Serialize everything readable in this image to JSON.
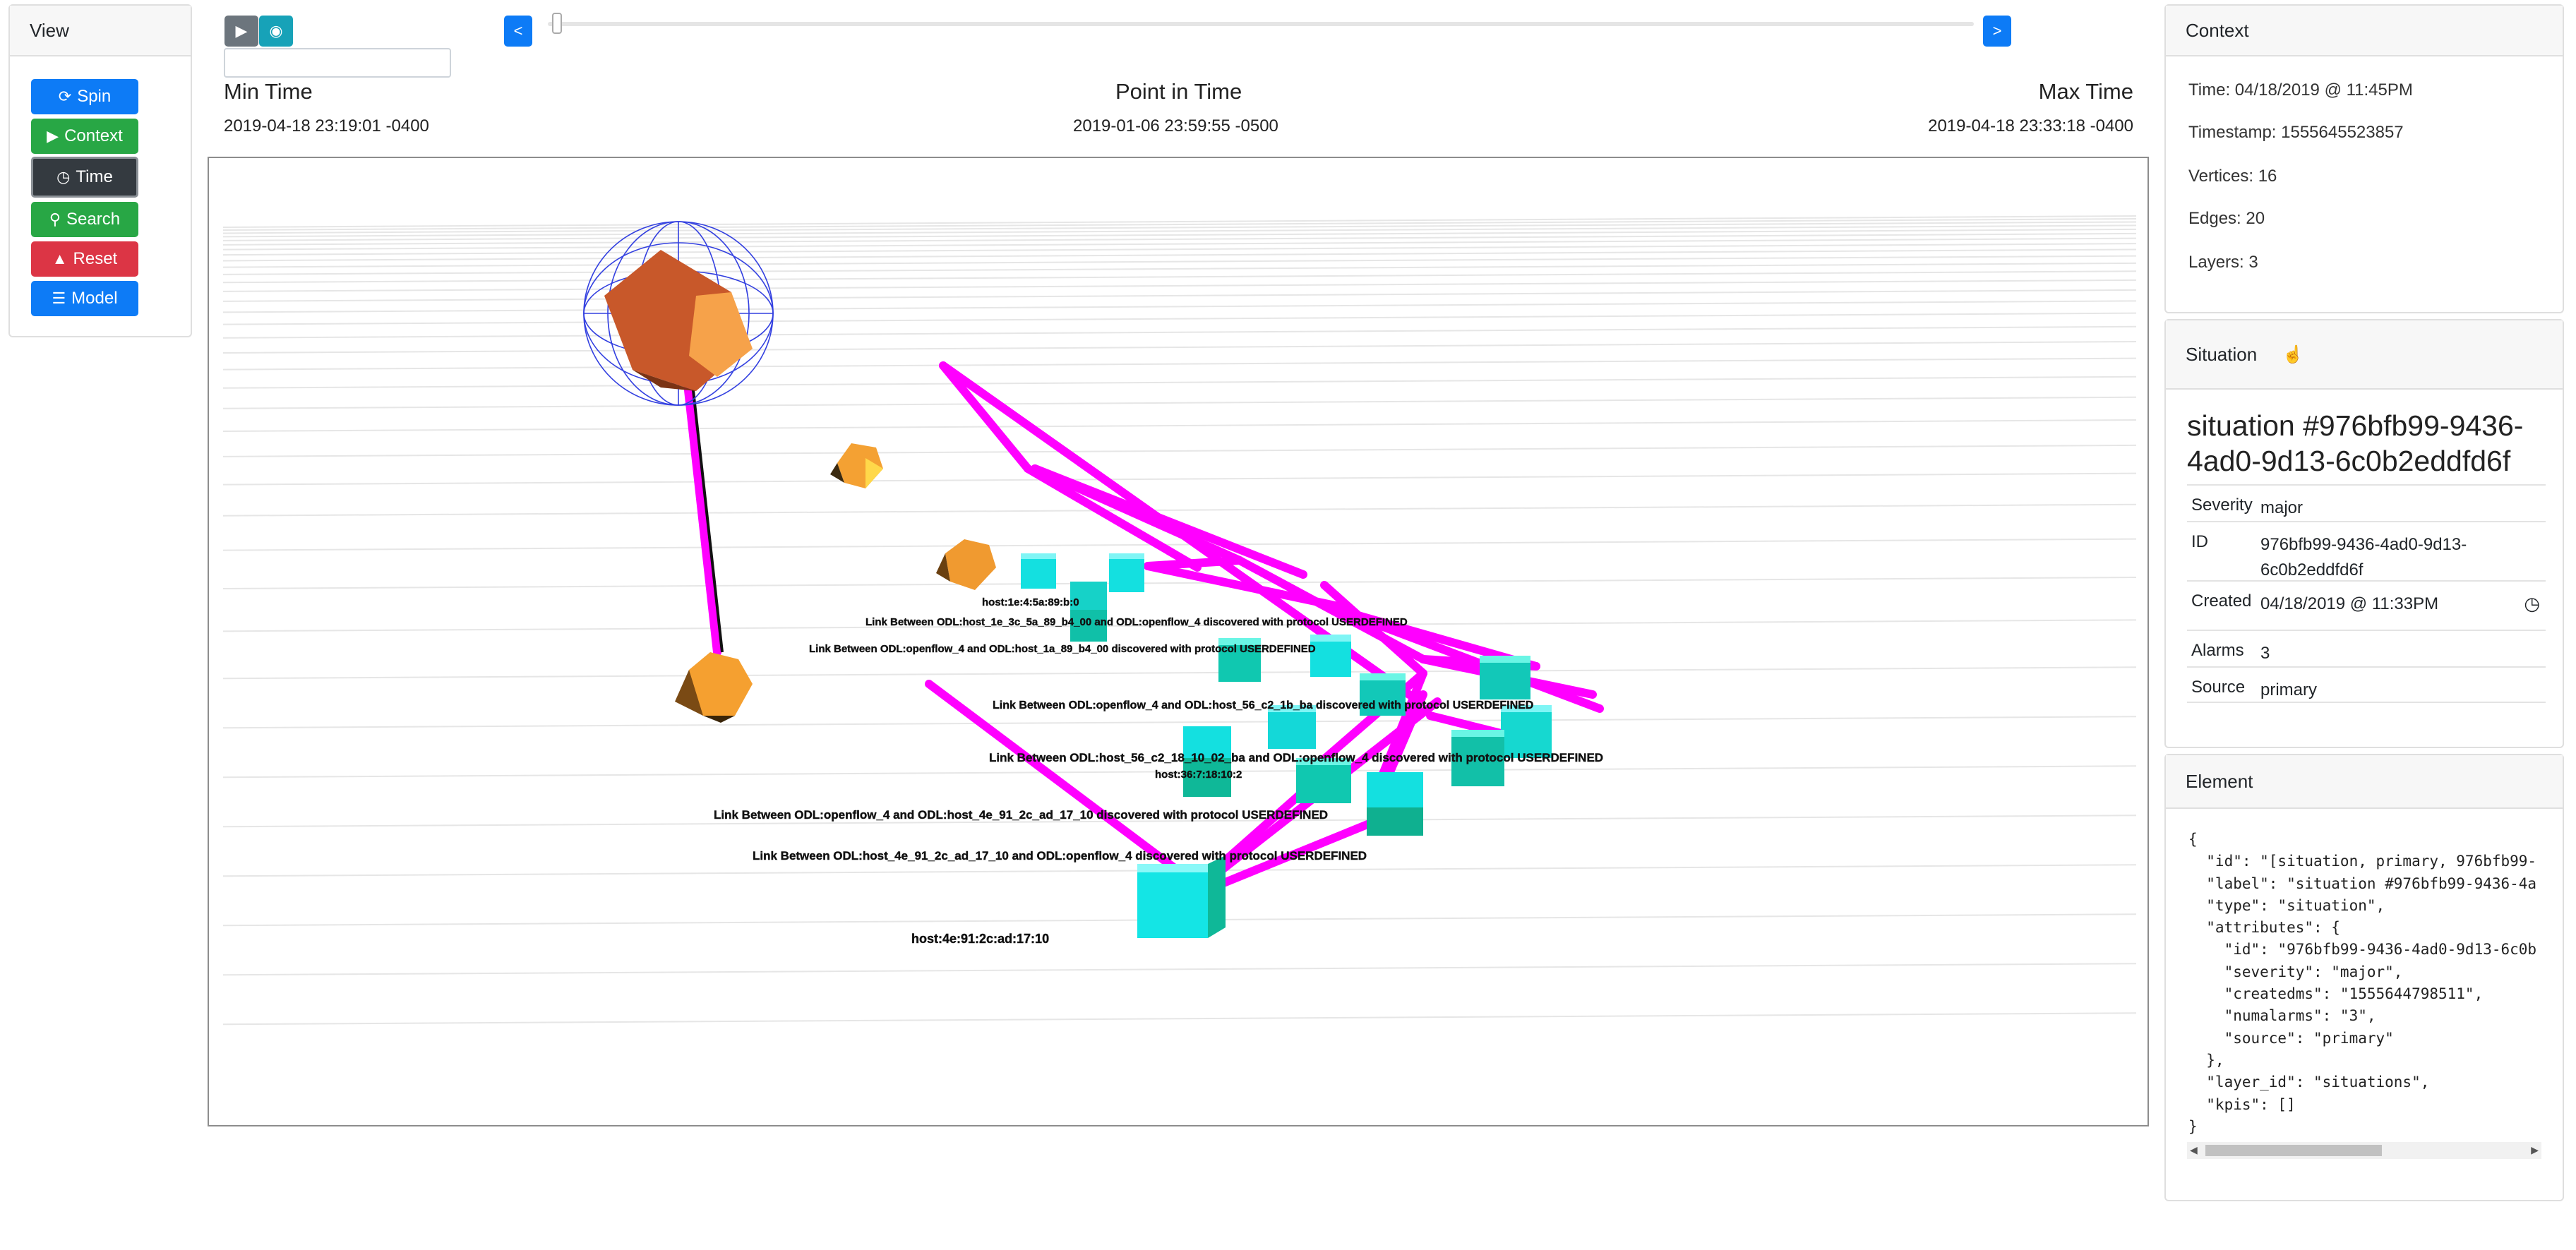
{
  "view_panel": {
    "title": "View",
    "buttons": [
      {
        "label": "Spin",
        "icon": "spin-icon",
        "color": "#0d7bf6"
      },
      {
        "label": "Context",
        "icon": "play-square-icon",
        "color": "#28a745"
      },
      {
        "label": "Time",
        "icon": "clock-icon",
        "color": "#343a40"
      },
      {
        "label": "Search",
        "icon": "search-icon",
        "color": "#28a745"
      },
      {
        "label": "Reset",
        "icon": "reset-icon",
        "color": "#dc3545"
      },
      {
        "label": "Model",
        "icon": "list-icon",
        "color": "#0d7bf6"
      }
    ]
  },
  "timeline": {
    "play_icon": "play-icon",
    "eye_icon": "eye-icon",
    "prev_label": "<",
    "next_label": ">",
    "time_input_value": "",
    "slider_position": 0.01,
    "min_label": "Min Time",
    "min_value": "2019-04-18 23:19:01 -0400",
    "point_label": "Point in Time",
    "point_value": "2019-01-06 23:59:55 -0500",
    "max_label": "Max Time",
    "max_value": "2019-04-18 23:33:18 -0400"
  },
  "graph": {
    "labels": [
      "host:1e:4:5a:89:b:0",
      "Link Between ODL:host_1e_3c_5a_89_b4_00 and ODL:openflow_4 discovered with protocol USERDEFINED",
      "Link Between ODL:openflow_4 and ODL:host_1a_89_b4_00 discovered with protocol USERDEFINED",
      "Link Between ODL:openflow_4 and ODL:host_56_c2_1b_ba discovered with protocol USERDEFINED",
      "Link Between ODL:host_56_c2_18_10_02_ba and ODL:openflow_4 discovered with protocol USERDEFINED",
      "host:36:7:18:10:2",
      "Link Between ODL:openflow_4 and ODL:host_4e_91_2c_ad_17_10 discovered with protocol USERDEFINED",
      "Link Between ODL:host_4e_91_2c_ad_17_10 and ODL:openflow_4 discovered with protocol USERDEFINED",
      "host:4e:91:2c:ad:17:10"
    ],
    "colors": {
      "edge": "#ff00ff",
      "host": "#00e5e5",
      "orange": "#f5a030"
    }
  },
  "context": {
    "title": "Context",
    "time": "Time: 04/18/2019 @ 11:45PM",
    "timestamp": "Timestamp: 1555645523857",
    "vertices": "Vertices: 16",
    "edges": "Edges: 20",
    "layers": "Layers: 3"
  },
  "situation": {
    "header": "Situation",
    "title": "situation #976bfb99-9436-4ad0-9d13-6c0b2eddfd6f",
    "rows": [
      {
        "key": "Severity",
        "value": "major"
      },
      {
        "key": "ID",
        "value": "976bfb99-9436-4ad0-9d13-6c0b2eddfd6f"
      },
      {
        "key": "Created",
        "value": "04/18/2019 @ 11:33PM"
      },
      {
        "key": "Alarms",
        "value": "3"
      },
      {
        "key": "Source",
        "value": "primary"
      }
    ]
  },
  "element": {
    "header": "Element",
    "json_text": "{\n  \"id\": \"[situation, primary, 976bfb99-\n  \"label\": \"situation #976bfb99-9436-4a\n  \"type\": \"situation\",\n  \"attributes\": {\n    \"id\": \"976bfb99-9436-4ad0-9d13-6c0b\n    \"severity\": \"major\",\n    \"createdms\": \"1555644798511\",\n    \"numalarms\": \"3\",\n    \"source\": \"primary\"\n  },\n  \"layer_id\": \"situations\",\n  \"kpis\": []\n}"
  }
}
